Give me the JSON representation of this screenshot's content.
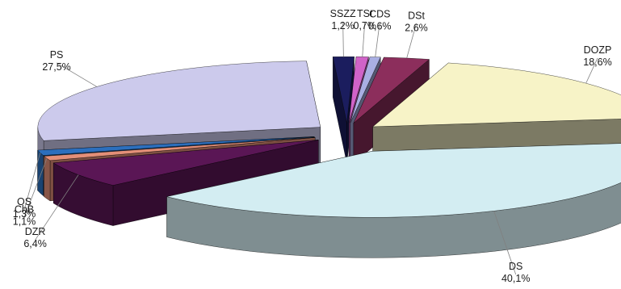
{
  "chart_data": {
    "type": "pie",
    "style": "3d-exploded",
    "title": "",
    "slices": [
      {
        "name": "CDS",
        "value": 0.6,
        "label": "0,6%",
        "color": "#A9AFE3"
      },
      {
        "name": "DSt",
        "value": 2.6,
        "label": "2,6%",
        "color": "#8C2E5C"
      },
      {
        "name": "DOZP",
        "value": 18.6,
        "label": "18,6%",
        "color": "#F7F3C7"
      },
      {
        "name": "DS",
        "value": 40.1,
        "label": "40,1%",
        "color": "#D3EDF2"
      },
      {
        "name": "DZR",
        "value": 6.4,
        "label": "6,4%",
        "color": "#5A1655"
      },
      {
        "name": "ChB",
        "value": 1.1,
        "label": "1,1%",
        "color": "#E38F78"
      },
      {
        "name": "OS",
        "value": 1.3,
        "label": "1,3%",
        "color": "#2C6FBD"
      },
      {
        "name": "PS",
        "value": 27.5,
        "label": "27,5%",
        "color": "#CCCAEC"
      },
      {
        "name": "SSZZ",
        "value": 1.2,
        "label": "1,2%",
        "color": "#1B1D5E"
      },
      {
        "name": "TSt",
        "value": 0.7,
        "label": "0,7%",
        "color": "#D063C8"
      }
    ]
  }
}
